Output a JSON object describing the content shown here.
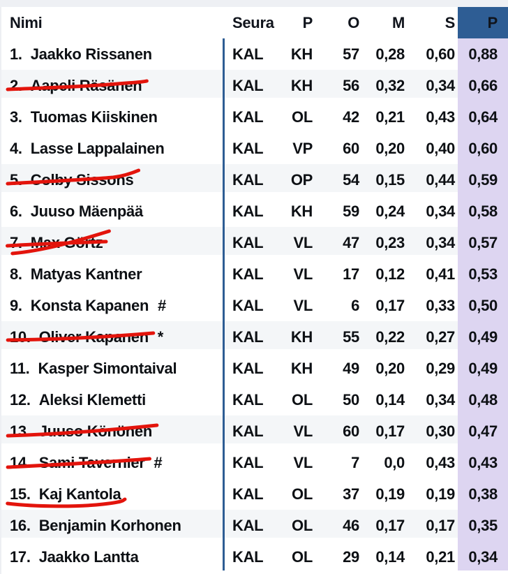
{
  "colors": {
    "header_accent": "#2e5d94",
    "points_column": "#ddd5f1",
    "row_stripe": "#f4f6f8",
    "strike_red": "#e3140c",
    "text": "#0d1014"
  },
  "header": {
    "nimi": "Nimi",
    "seura": "Seura",
    "p": "P",
    "o": "O",
    "m": "M",
    "s": "S",
    "pts": "P"
  },
  "rows": [
    {
      "rank": "1.",
      "name": "Jaakko Rissanen",
      "suffix": "",
      "seura": "KAL",
      "p": "KH",
      "o": "57",
      "m": "0,28",
      "s": "0,60",
      "pts": "0,88",
      "strike": null,
      "shaded": false
    },
    {
      "rank": "2.",
      "name": "Aapeli Räsänen",
      "suffix": "",
      "seura": "KAL",
      "p": "KH",
      "o": "56",
      "m": "0,32",
      "s": "0,34",
      "pts": "0,66",
      "strike": "s2",
      "shaded": true
    },
    {
      "rank": "3.",
      "name": "Tuomas Kiiskinen",
      "suffix": "",
      "seura": "KAL",
      "p": "OL",
      "o": "42",
      "m": "0,21",
      "s": "0,43",
      "pts": "0,64",
      "strike": null,
      "shaded": false
    },
    {
      "rank": "4.",
      "name": "Lasse Lappalainen",
      "suffix": "",
      "seura": "KAL",
      "p": "VP",
      "o": "60",
      "m": "0,20",
      "s": "0,40",
      "pts": "0,60",
      "strike": null,
      "shaded": false
    },
    {
      "rank": "5.",
      "name": "Colby Sissons",
      "suffix": "",
      "seura": "KAL",
      "p": "OP",
      "o": "54",
      "m": "0,15",
      "s": "0,44",
      "pts": "0,59",
      "strike": "s5",
      "shaded": true
    },
    {
      "rank": "6.",
      "name": "Juuso Mäenpää",
      "suffix": "",
      "seura": "KAL",
      "p": "KH",
      "o": "59",
      "m": "0,24",
      "s": "0,34",
      "pts": "0,58",
      "strike": null,
      "shaded": false
    },
    {
      "rank": "7.",
      "name": "Max Görtz",
      "suffix": "",
      "seura": "KAL",
      "p": "VL",
      "o": "47",
      "m": "0,23",
      "s": "0,34",
      "pts": "0,57",
      "strike": "s7",
      "shaded": true
    },
    {
      "rank": "8.",
      "name": "Matyas Kantner",
      "suffix": "",
      "seura": "KAL",
      "p": "VL",
      "o": "17",
      "m": "0,12",
      "s": "0,41",
      "pts": "0,53",
      "strike": null,
      "shaded": false
    },
    {
      "rank": "9.",
      "name": "Konsta Kapanen",
      "suffix": "#",
      "seura": "KAL",
      "p": "VL",
      "o": "6",
      "m": "0,17",
      "s": "0,33",
      "pts": "0,50",
      "strike": null,
      "shaded": false
    },
    {
      "rank": "10.",
      "name": "Oliver Kapanen",
      "suffix": "*",
      "seura": "KAL",
      "p": "KH",
      "o": "55",
      "m": "0,22",
      "s": "0,27",
      "pts": "0,49",
      "strike": "s10",
      "shaded": true
    },
    {
      "rank": "11.",
      "name": "Kasper Simontaival",
      "suffix": "",
      "seura": "KAL",
      "p": "KH",
      "o": "49",
      "m": "0,20",
      "s": "0,29",
      "pts": "0,49",
      "strike": null,
      "shaded": false
    },
    {
      "rank": "12.",
      "name": "Aleksi Klemetti",
      "suffix": "",
      "seura": "KAL",
      "p": "OL",
      "o": "50",
      "m": "0,14",
      "s": "0,34",
      "pts": "0,48",
      "strike": null,
      "shaded": false
    },
    {
      "rank": "13.",
      "name": "Juuso Könönen",
      "suffix": "",
      "seura": "KAL",
      "p": "VL",
      "o": "60",
      "m": "0,17",
      "s": "0,30",
      "pts": "0,47",
      "strike": "s13",
      "shaded": true
    },
    {
      "rank": "14.",
      "name": "Sami Tavernier",
      "suffix": "#",
      "seura": "KAL",
      "p": "VL",
      "o": "7",
      "m": "0,0",
      "s": "0,43",
      "pts": "0,43",
      "strike": "s14",
      "shaded": false
    },
    {
      "rank": "15.",
      "name": "Kaj Kantola",
      "suffix": "",
      "seura": "KAL",
      "p": "OL",
      "o": "37",
      "m": "0,19",
      "s": "0,19",
      "pts": "0,38",
      "strike": "s15",
      "shaded": false
    },
    {
      "rank": "16.",
      "name": "Benjamin Korhonen",
      "suffix": "",
      "seura": "KAL",
      "p": "OL",
      "o": "46",
      "m": "0,17",
      "s": "0,17",
      "pts": "0,35",
      "strike": null,
      "shaded": true
    },
    {
      "rank": "17.",
      "name": "Jaakko Lantta",
      "suffix": "",
      "seura": "KAL",
      "p": "OL",
      "o": "29",
      "m": "0,14",
      "s": "0,21",
      "pts": "0,34",
      "strike": null,
      "shaded": false
    }
  ],
  "strikes": {
    "s2": [
      "M 1 28 C 25 26 55 24 72 21 S 95 18 99 16"
    ],
    "s5": [
      "M 1 28 C 30 25 62 22 80 19 C 88 17 94 13 99 9"
    ],
    "s7": [
      "M 1 27 C 30 24 60 23 97 21",
      "M 6 38 C 35 34 65 22 100 6"
    ],
    "s10": [
      "M 1 27 C 30 26 60 24 99 17"
    ],
    "s13": [
      "M 1 29 C 30 27 60 23 99 14"
    ],
    "s14": [
      "M 1 29 C 30 26 70 22 99 17"
    ],
    "s15": [
      "M 1 36 C 25 41 60 41 80 37 S 96 31 98 30"
    ]
  }
}
